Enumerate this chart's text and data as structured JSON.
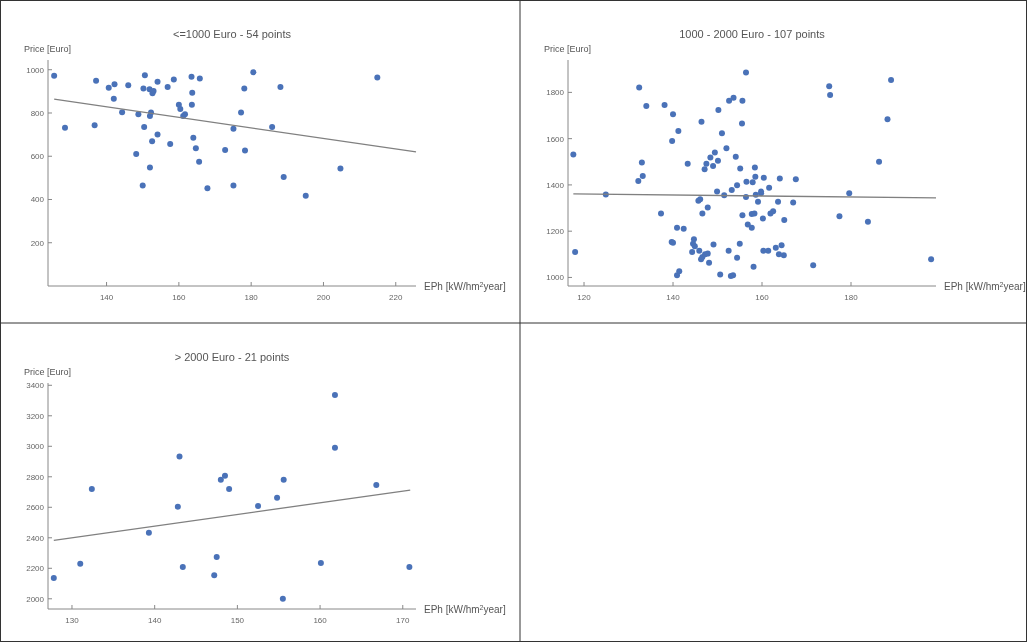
{
  "chart_data": [
    {
      "type": "scatter",
      "title": "<=1000 Euro - 54 points",
      "xlabel": "EPh [kW/hm$^{2}$year]",
      "ylabel": "Price [Euro]",
      "xlim": [
        123.8,
        225.6
      ],
      "ylim": [
        0,
        1045
      ],
      "xticks": [
        140,
        160,
        180,
        200,
        220
      ],
      "yticks": [
        200,
        400,
        600,
        800,
        1000
      ],
      "series": [
        {
          "marker": "circle",
          "color": "#4a72b8",
          "x": [
            125.5,
            128.5,
            136.7,
            137.1,
            140.6,
            142.2,
            142.0,
            144.3,
            146.0,
            148.2,
            148.8,
            150.0,
            150.2,
            150.4,
            150.6,
            151.9,
            152.0,
            152.3,
            152.0,
            152.6,
            152.7,
            153.0,
            154.1,
            154.1,
            156.9,
            157.6,
            158.6,
            160.0,
            160.4,
            161.2,
            161.7,
            163.5,
            163.7,
            163.6,
            164.0,
            164.7,
            165.6,
            165.8,
            167.9,
            172.8,
            175.1,
            175.1,
            177.2,
            178.1,
            178.3,
            180.6,
            185.8,
            188.1,
            189.0,
            195.1,
            204.7,
            214.9
          ],
          "values": [
            972,
            732,
            743,
            949,
            917,
            933,
            866,
            803,
            928,
            610,
            794,
            465,
            913,
            735,
            975,
            910,
            786,
            802,
            548,
            669,
            891,
            902,
            944,
            700,
            920,
            657,
            955,
            838,
            819,
            786,
            794,
            967,
            894,
            838,
            685,
            637,
            574,
            959,
            452,
            629,
            727,
            465,
            802,
            913,
            626,
            988,
            735,
            920,
            504,
            417,
            543,
            964
          ]
        },
        {
          "type": "line",
          "color": "#808080",
          "x": [
            125.5,
            225.6
          ],
          "values": [
            864,
            620
          ]
        }
      ]
    },
    {
      "type": "scatter",
      "title": "1000 - 2000 Euro - 107 points",
      "xlabel": "EPh [kW/hm$^{2}$year]",
      "ylabel": "Price [Euro]",
      "xlim": [
        116.4,
        199.1
      ],
      "ylim": [
        963,
        1940
      ],
      "xticks": [
        120,
        140,
        160,
        180
      ],
      "yticks": [
        1000,
        1200,
        1400,
        1600,
        1800
      ],
      "series": [
        {
          "marker": "circle",
          "color": "#4a72b8",
          "x": [
            117.6,
            118.0,
            124.9,
            132.4,
            132.2,
            133.0,
            133.2,
            134.0,
            137.3,
            138.1,
            139.8,
            140.0,
            139.7,
            140.0,
            140.9,
            141.2,
            140.9,
            141.4,
            142.4,
            143.3,
            144.3,
            144.7,
            144.5,
            144.9,
            145.7,
            146.1,
            145.9,
            146.4,
            146.6,
            146.3,
            146.6,
            147.1,
            147.2,
            147.5,
            147.8,
            147.8,
            148.1,
            148.4,
            149.0,
            149.1,
            149.4,
            149.9,
            150.1,
            150.2,
            150.6,
            151.0,
            151.5,
            152.0,
            152.5,
            152.6,
            153.0,
            153.5,
            153.2,
            153.6,
            154.1,
            154.4,
            154.4,
            155.0,
            155.1,
            155.5,
            155.6,
            155.6,
            156.4,
            156.5,
            156.4,
            156.8,
            157.7,
            157.7,
            157.9,
            158.1,
            158.3,
            158.4,
            158.5,
            158.6,
            159.1,
            159.8,
            159.8,
            160.2,
            160.3,
            160.4,
            161.4,
            161.6,
            161.9,
            162.5,
            163.1,
            163.6,
            163.8,
            164.0,
            164.4,
            164.9,
            165.0,
            167.0,
            167.6,
            171.5,
            175.1,
            175.3,
            177.4,
            179.6,
            183.8,
            186.3,
            188.2,
            189.0,
            198.0
          ],
          "values": [
            1532,
            1110,
            1359,
            1821,
            1417,
            1497,
            1439,
            1741,
            1276,
            1746,
            1590,
            1706,
            1153,
            1150,
            1215,
            1633,
            1010,
            1027,
            1211,
            1492,
            1110,
            1165,
            1146,
            1135,
            1331,
            1338,
            1115,
            1673,
            1276,
            1079,
            1088,
            1468,
            1100,
            1492,
            1302,
            1103,
            1063,
            1518,
            1482,
            1142,
            1540,
            1371,
            1504,
            1724,
            1013,
            1623,
            1355,
            1558,
            1115,
            1764,
            1006,
            1009,
            1378,
            1777,
            1522,
            1399,
            1085,
            1146,
            1471,
            1666,
            1764,
            1269,
            1886,
            1414,
            1348,
            1229,
            1274,
            1215,
            1411,
            1046,
            1276,
            1475,
            1435,
            1357,
            1327,
            1371,
            1364,
            1255,
            1115,
            1431,
            1115,
            1388,
            1276,
            1286,
            1128,
            1327,
            1100,
            1428,
            1139,
            1096,
            1248,
            1324,
            1424,
            1053,
            1827,
            1789,
            1265,
            1364,
            1241,
            1500,
            1684,
            1853,
            1079
          ]
        },
        {
          "type": "line",
          "color": "#808080",
          "x": [
            117.6,
            199.1
          ],
          "values": [
            1361,
            1344
          ]
        }
      ]
    },
    {
      "type": "scatter",
      "title": "> 2000 Euro - 21 points",
      "xlabel": "EPh [kW/hm$^{2}$year]",
      "ylabel": "Price [Euro]",
      "xlim": [
        127.1,
        171.6
      ],
      "ylim": [
        1933,
        3415
      ],
      "xticks": [
        130,
        140,
        150,
        160,
        170
      ],
      "yticks": [
        2000,
        2200,
        2400,
        2600,
        2800,
        3000,
        3200,
        3400
      ],
      "series": [
        {
          "marker": "circle",
          "color": "#4a72b8",
          "x": [
            127.8,
            131.0,
            132.4,
            139.3,
            142.8,
            143.0,
            143.4,
            147.2,
            147.5,
            148.0,
            148.5,
            149.0,
            152.5,
            154.8,
            155.5,
            155.6,
            160.1,
            161.8,
            161.8,
            166.8,
            170.8
          ],
          "values": [
            2137,
            2230,
            2720,
            2433,
            2604,
            2933,
            2209,
            2154,
            2274,
            2780,
            2807,
            2720,
            2609,
            2663,
            2000,
            2780,
            2235,
            3337,
            2991,
            2746,
            2209
          ]
        },
        {
          "type": "line",
          "color": "#808080",
          "x": [
            127.8,
            170.9
          ],
          "values": [
            2383,
            2713
          ]
        }
      ]
    }
  ]
}
